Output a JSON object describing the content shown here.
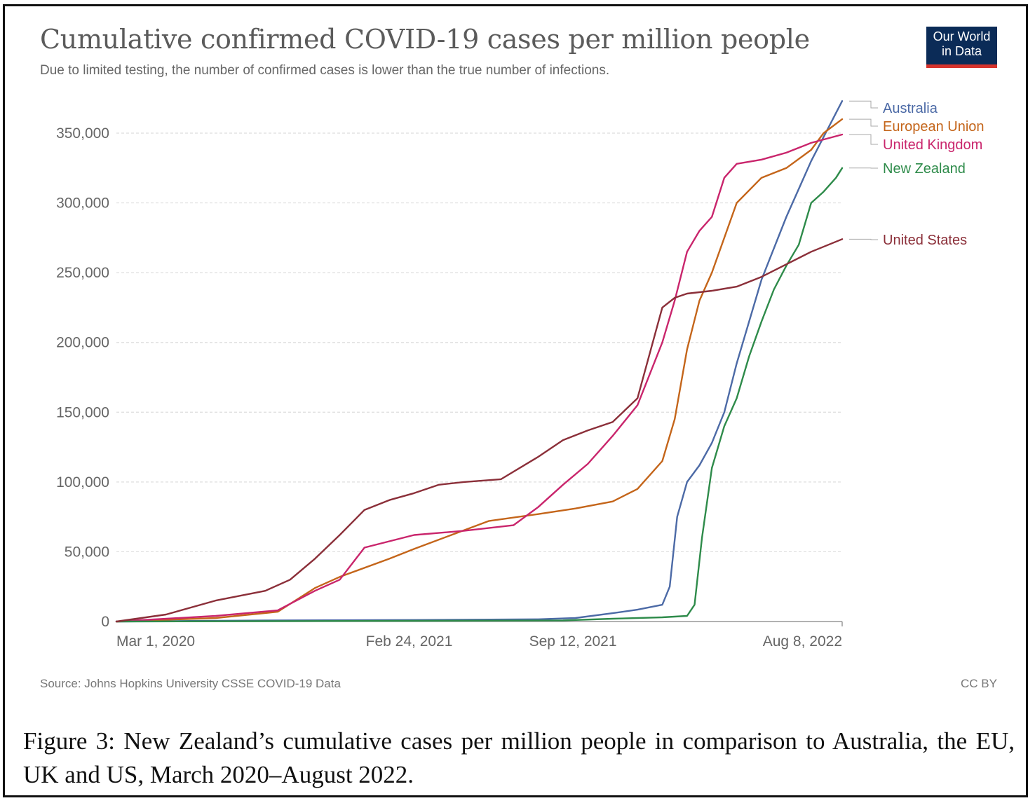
{
  "header": {
    "title": "Cumulative confirmed COVID-19 cases per million people",
    "subtitle": "Due to limited testing, the number of confirmed cases is lower than the true number of infections.",
    "logo_line1": "Our World",
    "logo_line2": "in Data"
  },
  "footer": {
    "source": "Source: Johns Hopkins University CSSE COVID-19 Data",
    "license": "CC BY"
  },
  "caption": "Figure 3: New Zealand’s cumulative cases per million people in comparison to Australia, the EU, UK and US, March 2020–August 2022.",
  "chart_data": {
    "type": "line",
    "title": "Cumulative confirmed COVID-19 cases per million people",
    "xlabel": "",
    "ylabel": "",
    "x_unit": "months since Mar 1, 2020",
    "xlim": [
      0,
      29.25
    ],
    "ylim": [
      0,
      370000
    ],
    "y_ticks": [
      0,
      50000,
      100000,
      150000,
      200000,
      250000,
      300000,
      350000
    ],
    "y_tick_labels": [
      "0",
      "50,000",
      "100,000",
      "150,000",
      "200,000",
      "250,000",
      "300,000",
      "350,000"
    ],
    "x_ticks": [
      {
        "value": 0,
        "label": "Mar 1, 2020"
      },
      {
        "value": 11.8,
        "label": "Feb 24, 2021"
      },
      {
        "value": 18.4,
        "label": "Sep 12, 2021"
      },
      {
        "value": 29.25,
        "label": "Aug 8, 2022"
      }
    ],
    "grid": true,
    "legend": "right, labels at line ends",
    "series": [
      {
        "name": "Australia",
        "color": "#4c6aa6",
        "x": [
          0,
          6,
          12,
          17,
          18.5,
          20,
          21,
          22,
          22.3,
          22.6,
          23,
          23.5,
          24,
          24.5,
          25,
          26,
          27,
          28,
          29.25
        ],
        "y": [
          0,
          800,
          1100,
          1600,
          2500,
          6000,
          8500,
          12000,
          25000,
          75000,
          100000,
          112000,
          128000,
          150000,
          185000,
          245000,
          290000,
          330000,
          373000
        ]
      },
      {
        "name": "European Union",
        "color": "#c4651a",
        "x": [
          0,
          4,
          6.5,
          8,
          9,
          11,
          12,
          13.5,
          15,
          17,
          18.5,
          20,
          21,
          22,
          22.5,
          23,
          23.5,
          24,
          24.5,
          25,
          26,
          27,
          28,
          28.5,
          29.25
        ],
        "y": [
          0,
          2500,
          7000,
          24000,
          32000,
          45000,
          52000,
          62000,
          72000,
          77000,
          81000,
          86000,
          95000,
          115000,
          145000,
          195000,
          230000,
          250000,
          275000,
          300000,
          318000,
          325000,
          338000,
          350000,
          360000
        ]
      },
      {
        "name": "United Kingdom",
        "color": "#c9256c",
        "x": [
          0,
          4,
          6.5,
          8,
          9,
          10,
          12,
          14,
          16,
          17,
          18,
          19,
          20,
          21,
          22,
          22.5,
          23,
          23.5,
          24,
          24.5,
          25,
          26,
          27,
          28,
          29.25
        ],
        "y": [
          0,
          4000,
          8000,
          22000,
          30000,
          53000,
          62000,
          65000,
          69000,
          82000,
          98000,
          113000,
          133000,
          155000,
          200000,
          230000,
          265000,
          280000,
          290000,
          318000,
          328000,
          331000,
          336000,
          343000,
          349000
        ]
      },
      {
        "name": "New Zealand",
        "color": "#2e8b4a",
        "x": [
          0,
          12,
          18,
          20,
          22,
          23,
          23.3,
          23.6,
          24,
          24.5,
          25,
          25.5,
          26,
          26.5,
          27,
          27.5,
          28,
          28.5,
          29,
          29.25
        ],
        "y": [
          0,
          500,
          800,
          2000,
          3000,
          4000,
          12000,
          60000,
          110000,
          140000,
          160000,
          190000,
          215000,
          238000,
          255000,
          270000,
          300000,
          308000,
          318000,
          325000
        ]
      },
      {
        "name": "United States",
        "color": "#8b2f39",
        "x": [
          0,
          2,
          4,
          6,
          7,
          8,
          9,
          10,
          11,
          12,
          13,
          14,
          15.5,
          17,
          18,
          19,
          20,
          21,
          22,
          22.5,
          23,
          24,
          25,
          26,
          27,
          28,
          29.25
        ],
        "y": [
          0,
          5000,
          15000,
          22000,
          30000,
          45000,
          62000,
          80000,
          87000,
          92000,
          98000,
          100000,
          102000,
          118000,
          130000,
          137000,
          143000,
          160000,
          225000,
          232000,
          235000,
          237000,
          240000,
          247000,
          256000,
          265000,
          274000
        ]
      }
    ]
  }
}
